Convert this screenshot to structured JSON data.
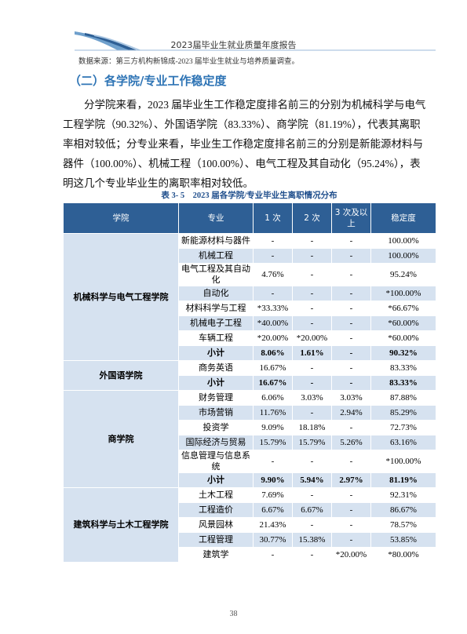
{
  "header": {
    "title": "2023届毕业生就业质量年度报告"
  },
  "source_note": "数据来源：第三方机构新锦成-2023 届毕业生就业与培养质量调查。",
  "section_title": "（二）各学院/专业工作稳定度",
  "paragraph_lines": [
    "分学院来看，2023 届毕业生工作稳定度排名前三的分别为机械科学与电气",
    "工程学院（90.32%）、外国语学院（83.33%）、商学院（81.19%），代表其离职",
    "率相对较低；分专业来看，毕业生工作稳定度排名前三的分别是新能源材料与",
    "器件（100.00%）、机械工程（100.00%）、电气工程及其自动化（95.24%），表",
    "明这几个专业毕业生的离职率相对较低。"
  ],
  "table": {
    "caption": "表 3- 5　2023 届各学院/专业毕业生离职情况分布",
    "header": [
      "学院",
      "专业",
      "1 次",
      "2 次",
      "3 次及以上",
      "稳定度"
    ],
    "groups": [
      {
        "college": "机械科学与电气工程学院",
        "rows": [
          [
            "新能源材料与器件",
            "-",
            "-",
            "-",
            "100.00%"
          ],
          [
            "机械工程",
            "-",
            "-",
            "-",
            "100.00%"
          ],
          [
            "电气工程及其自动化",
            "4.76%",
            "-",
            "-",
            "95.24%"
          ],
          [
            "自动化",
            "-",
            "-",
            "-",
            "*100.00%"
          ],
          [
            "材料科学与工程",
            "*33.33%",
            "-",
            "-",
            "*66.67%"
          ],
          [
            "机械电子工程",
            "*40.00%",
            "-",
            "-",
            "*60.00%"
          ],
          [
            "车辆工程",
            "*20.00%",
            "*20.00%",
            "-",
            "*60.00%"
          ]
        ],
        "subtotal": [
          "小计",
          "8.06%",
          "1.61%",
          "-",
          "90.32%"
        ]
      },
      {
        "college": "外国语学院",
        "rows": [
          [
            "商务英语",
            "16.67%",
            "-",
            "-",
            "83.33%"
          ]
        ],
        "subtotal": [
          "小计",
          "16.67%",
          "-",
          "-",
          "83.33%"
        ]
      },
      {
        "college": "商学院",
        "rows": [
          [
            "财务管理",
            "6.06%",
            "3.03%",
            "3.03%",
            "87.88%"
          ],
          [
            "市场营销",
            "11.76%",
            "-",
            "2.94%",
            "85.29%"
          ],
          [
            "投资学",
            "9.09%",
            "18.18%",
            "-",
            "72.73%"
          ],
          [
            "国际经济与贸易",
            "15.79%",
            "15.79%",
            "5.26%",
            "63.16%"
          ],
          [
            "信息管理与信息系统",
            "-",
            "-",
            "-",
            "*100.00%"
          ]
        ],
        "subtotal": [
          "小计",
          "9.90%",
          "5.94%",
          "2.97%",
          "81.19%"
        ]
      },
      {
        "college": "建筑科学与土木工程学院",
        "rows": [
          [
            "土木工程",
            "7.69%",
            "-",
            "-",
            "92.31%"
          ],
          [
            "工程造价",
            "6.67%",
            "6.67%",
            "-",
            "86.67%"
          ],
          [
            "风景园林",
            "21.43%",
            "-",
            "-",
            "78.57%"
          ],
          [
            "工程管理",
            "30.77%",
            "15.38%",
            "-",
            "53.85%"
          ],
          [
            "建筑学",
            "-",
            "-",
            "*20.00%",
            "*80.00%"
          ]
        ]
      }
    ]
  },
  "page_number": "38"
}
